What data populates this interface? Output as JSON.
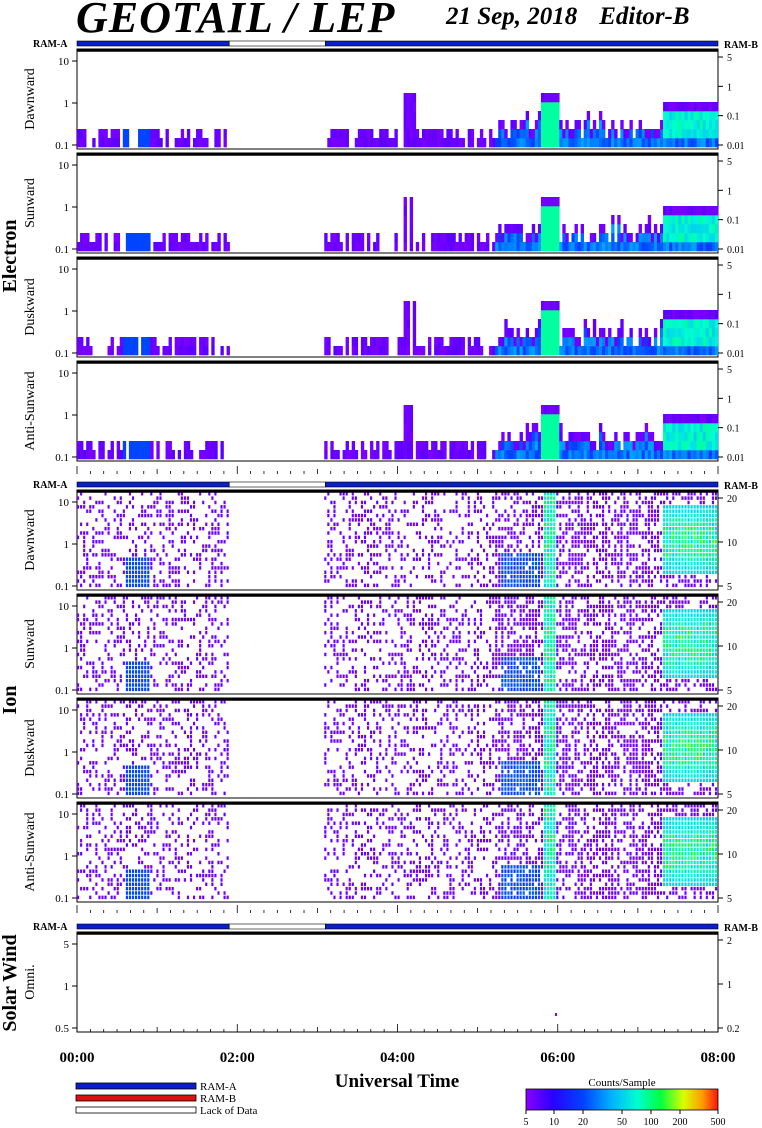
{
  "header": {
    "title": "GEOTAIL / LEP",
    "date": "21 Sep, 2018",
    "editor": "Editor-B"
  },
  "chart_data": {
    "type": "heatmap",
    "xlabel": "Universal Time",
    "xticks": [
      "00:00",
      "02:00",
      "04:00",
      "06:00",
      "08:00"
    ],
    "xlim_hours": [
      0,
      8
    ],
    "groups": [
      {
        "name": "Electron",
        "panels": [
          "Dawnward",
          "Sunward",
          "Duskward",
          "Anti-Sunward"
        ],
        "yticks_left": [
          "10",
          "1",
          "0.1"
        ],
        "yticks_right": [
          "5",
          "1",
          "0.1",
          "0.01"
        ]
      },
      {
        "name": "Ion",
        "panels": [
          "Dawnward",
          "Sunward",
          "Duskward",
          "Anti-Sunward"
        ],
        "yticks_left": [
          "10",
          "1",
          "0.1"
        ],
        "yticks_right": [
          "20",
          "10",
          "5"
        ]
      },
      {
        "name": "Solar Wind",
        "panels": [
          "Omni."
        ],
        "yticks_left": [
          "5",
          "1",
          "0.5"
        ],
        "yticks_right": [
          "2",
          "1",
          "0.2"
        ]
      }
    ],
    "mode_bar": {
      "left_label": "RAM-A",
      "right_label": "RAM-B",
      "segments": [
        {
          "start": 0.0,
          "end": 1.9,
          "mode": "RAM-A"
        },
        {
          "start": 1.9,
          "end": 3.1,
          "mode": "Lack of Data"
        },
        {
          "start": 3.1,
          "end": 8.0,
          "mode": "RAM-A"
        }
      ]
    },
    "legend": {
      "items": [
        {
          "label": "RAM-A",
          "color": "#0a1fc8"
        },
        {
          "label": "RAM-B",
          "color": "#e01010"
        },
        {
          "label": "Lack of Data",
          "color": "#ffffff"
        }
      ]
    },
    "colorbar": {
      "title": "Counts/Sample",
      "ticks": [
        "5",
        "10",
        "20",
        "50",
        "100",
        "200",
        "500"
      ]
    }
  }
}
